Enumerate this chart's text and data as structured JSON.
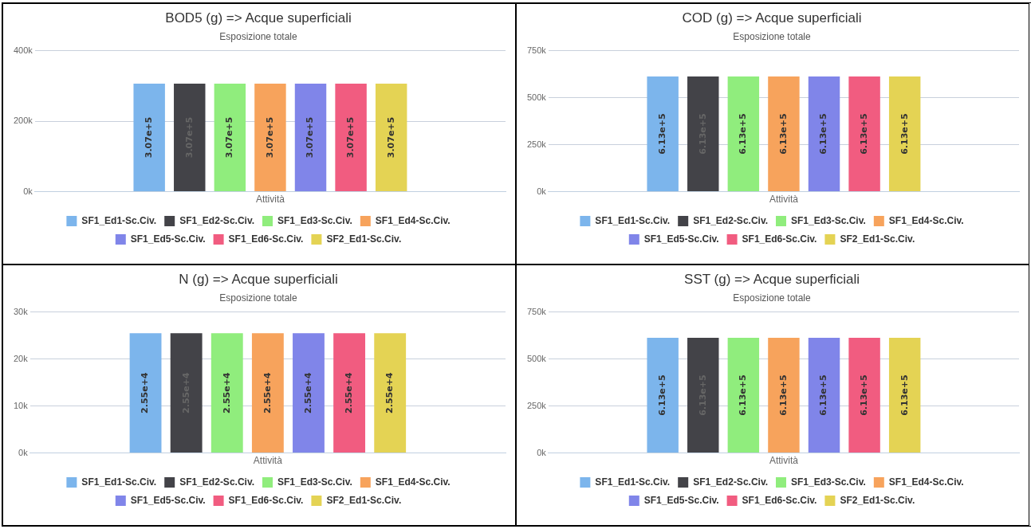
{
  "chart_data": [
    {
      "type": "bar",
      "title": "BOD5 (g) => Acque superficiali",
      "subtitle": "Esposizione totale",
      "categories": [
        "Attività"
      ],
      "ylim": [
        0,
        400000
      ],
      "yticks": [
        {
          "value": 0,
          "label": "0k"
        },
        {
          "value": 200000,
          "label": "200k"
        },
        {
          "value": 400000,
          "label": "400k"
        }
      ],
      "grid": "y",
      "legend": "bottom",
      "series": [
        {
          "name": "SF1_Ed1-Sc.Civ.",
          "color": "#7cb5ec",
          "values": [
            307000
          ],
          "value_labels": [
            "3.07e+5"
          ]
        },
        {
          "name": "SF1_Ed2-Sc.Civ.",
          "color": "#434348",
          "values": [
            307000
          ],
          "value_labels": [
            "3.07e+5"
          ]
        },
        {
          "name": "SF1_Ed3-Sc.Civ.",
          "color": "#90ed7d",
          "values": [
            307000
          ],
          "value_labels": [
            "3.07e+5"
          ]
        },
        {
          "name": "SF1_Ed4-Sc.Civ.",
          "color": "#f7a35c",
          "values": [
            307000
          ],
          "value_labels": [
            "3.07e+5"
          ]
        },
        {
          "name": "SF1_Ed5-Sc.Civ.",
          "color": "#8085e9",
          "values": [
            307000
          ],
          "value_labels": [
            "3.07e+5"
          ]
        },
        {
          "name": "SF1_Ed6-Sc.Civ.",
          "color": "#f15c80",
          "values": [
            307000
          ],
          "value_labels": [
            "3.07e+5"
          ]
        },
        {
          "name": "SF2_Ed1-Sc.Civ.",
          "color": "#e4d354",
          "values": [
            307000
          ],
          "value_labels": [
            "3.07e+5"
          ]
        }
      ]
    },
    {
      "type": "bar",
      "title": "COD (g) => Acque superficiali",
      "subtitle": "Esposizione totale",
      "categories": [
        "Attività"
      ],
      "ylim": [
        0,
        750000
      ],
      "yticks": [
        {
          "value": 0,
          "label": "0k"
        },
        {
          "value": 250000,
          "label": "250k"
        },
        {
          "value": 500000,
          "label": "500k"
        },
        {
          "value": 750000,
          "label": "750k"
        }
      ],
      "grid": "y",
      "legend": "bottom",
      "series": [
        {
          "name": "SF1_Ed1-Sc.Civ.",
          "color": "#7cb5ec",
          "values": [
            613000
          ],
          "value_labels": [
            "6.13e+5"
          ]
        },
        {
          "name": "SF1_Ed2-Sc.Civ.",
          "color": "#434348",
          "values": [
            613000
          ],
          "value_labels": [
            "6.13e+5"
          ]
        },
        {
          "name": "SF1_Ed3-Sc.Civ.",
          "color": "#90ed7d",
          "values": [
            613000
          ],
          "value_labels": [
            "6.13e+5"
          ]
        },
        {
          "name": "SF1_Ed4-Sc.Civ.",
          "color": "#f7a35c",
          "values": [
            613000
          ],
          "value_labels": [
            "6.13e+5"
          ]
        },
        {
          "name": "SF1_Ed5-Sc.Civ.",
          "color": "#8085e9",
          "values": [
            613000
          ],
          "value_labels": [
            "6.13e+5"
          ]
        },
        {
          "name": "SF1_Ed6-Sc.Civ.",
          "color": "#f15c80",
          "values": [
            613000
          ],
          "value_labels": [
            "6.13e+5"
          ]
        },
        {
          "name": "SF2_Ed1-Sc.Civ.",
          "color": "#e4d354",
          "values": [
            613000
          ],
          "value_labels": [
            "6.13e+5"
          ]
        }
      ]
    },
    {
      "type": "bar",
      "title": "N (g) => Acque superficiali",
      "subtitle": "Esposizione totale",
      "categories": [
        "Attività"
      ],
      "ylim": [
        0,
        30000
      ],
      "yticks": [
        {
          "value": 0,
          "label": "0k"
        },
        {
          "value": 10000,
          "label": "10k"
        },
        {
          "value": 20000,
          "label": "20k"
        },
        {
          "value": 30000,
          "label": "30k"
        }
      ],
      "grid": "y",
      "legend": "bottom",
      "series": [
        {
          "name": "SF1_Ed1-Sc.Civ.",
          "color": "#7cb5ec",
          "values": [
            25500
          ],
          "value_labels": [
            "2.55e+4"
          ]
        },
        {
          "name": "SF1_Ed2-Sc.Civ.",
          "color": "#434348",
          "values": [
            25500
          ],
          "value_labels": [
            "2.55e+4"
          ]
        },
        {
          "name": "SF1_Ed3-Sc.Civ.",
          "color": "#90ed7d",
          "values": [
            25500
          ],
          "value_labels": [
            "2.55e+4"
          ]
        },
        {
          "name": "SF1_Ed4-Sc.Civ.",
          "color": "#f7a35c",
          "values": [
            25500
          ],
          "value_labels": [
            "2.55e+4"
          ]
        },
        {
          "name": "SF1_Ed5-Sc.Civ.",
          "color": "#8085e9",
          "values": [
            25500
          ],
          "value_labels": [
            "2.55e+4"
          ]
        },
        {
          "name": "SF1_Ed6-Sc.Civ.",
          "color": "#f15c80",
          "values": [
            25500
          ],
          "value_labels": [
            "2.55e+4"
          ]
        },
        {
          "name": "SF2_Ed1-Sc.Civ.",
          "color": "#e4d354",
          "values": [
            25500
          ],
          "value_labels": [
            "2.55e+4"
          ]
        }
      ]
    },
    {
      "type": "bar",
      "title": "SST (g) => Acque superficiali",
      "subtitle": "Esposizione totale",
      "categories": [
        "Attività"
      ],
      "ylim": [
        0,
        750000
      ],
      "yticks": [
        {
          "value": 0,
          "label": "0k"
        },
        {
          "value": 250000,
          "label": "250k"
        },
        {
          "value": 500000,
          "label": "500k"
        },
        {
          "value": 750000,
          "label": "750k"
        }
      ],
      "grid": "y",
      "legend": "bottom",
      "series": [
        {
          "name": "SF1_Ed1-Sc.Civ.",
          "color": "#7cb5ec",
          "values": [
            613000
          ],
          "value_labels": [
            "6.13e+5"
          ]
        },
        {
          "name": "SF1_Ed2-Sc.Civ.",
          "color": "#434348",
          "values": [
            613000
          ],
          "value_labels": [
            "6.13e+5"
          ]
        },
        {
          "name": "SF1_Ed3-Sc.Civ.",
          "color": "#90ed7d",
          "values": [
            613000
          ],
          "value_labels": [
            "6.13e+5"
          ]
        },
        {
          "name": "SF1_Ed4-Sc.Civ.",
          "color": "#f7a35c",
          "values": [
            613000
          ],
          "value_labels": [
            "6.13e+5"
          ]
        },
        {
          "name": "SF1_Ed5-Sc.Civ.",
          "color": "#8085e9",
          "values": [
            613000
          ],
          "value_labels": [
            "6.13e+5"
          ]
        },
        {
          "name": "SF1_Ed6-Sc.Civ.",
          "color": "#f15c80",
          "values": [
            613000
          ],
          "value_labels": [
            "6.13e+5"
          ]
        },
        {
          "name": "SF2_Ed1-Sc.Civ.",
          "color": "#e4d354",
          "values": [
            613000
          ],
          "value_labels": [
            "6.13e+5"
          ]
        }
      ]
    }
  ]
}
